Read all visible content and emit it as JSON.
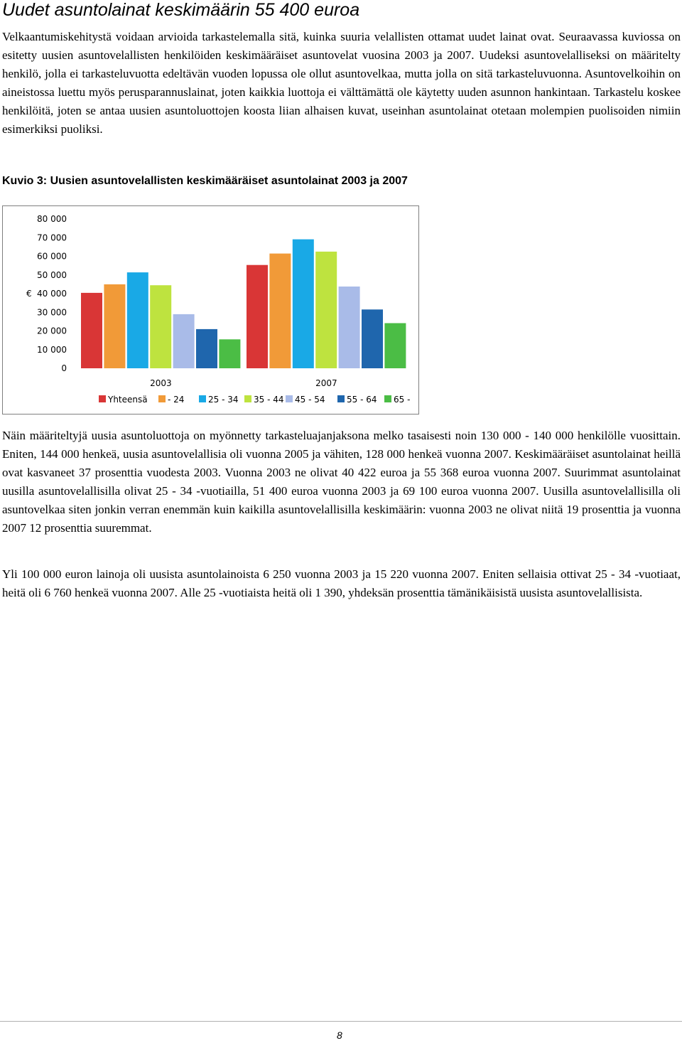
{
  "page": {
    "title": "Uudet asuntolainat keskimäärin 55 400 euroa",
    "paragraph_1": "Velkaantumiskehitystä voidaan arvioida tarkastelemalla sitä, kuinka suuria velallisten ottamat uudet lainat ovat. Seuraavassa kuviossa on esitetty uusien asuntovelallisten henkilöiden keskimääräiset asuntovelat vuosina 2003 ja 2007. Uudeksi asuntovelalliseksi on määritelty henkilö, jolla ei tarkasteluvuotta edeltävän vuoden lopussa ole ollut asuntovelkaa, mutta jolla on sitä tarkasteluvuonna. Asuntovelkoihin on aineistossa luettu myös perusparannuslainat, joten kaikkia luottoja ei välttämättä ole käytetty uuden asunnon hankintaan. Tarkastelu koskee henkilöitä, joten se antaa uusien asuntoluottojen koosta liian alhaisen kuvat, useinhan asuntolainat otetaan molempien puolisoiden nimiin esimerkiksi puoliksi.",
    "figure_title": "Kuvio 3: Uusien asuntovelallisten keskimääräiset asuntolainat 2003 ja 2007",
    "paragraph_2": "Näin määriteltyjä uusia asuntoluottoja on myönnetty tarkasteluajanjaksona melko tasaisesti noin 130 000 - 140 000 henkilölle vuosittain. Eniten, 144 000 henkeä, uusia asuntovelallisia oli vuonna 2005 ja vähiten, 128 000 henkeä vuonna 2007. Keskimääräiset asuntolainat heillä ovat kasvaneet 37 prosenttia vuodesta 2003. Vuonna 2003 ne olivat 40 422 euroa ja 55 368 euroa vuonna 2007. Suurimmat asuntolainat uusilla asuntovelallisilla olivat 25 - 34 -vuotiailla, 51 400 euroa vuonna 2003 ja 69 100 euroa vuonna 2007. Uusilla asuntovelallisilla oli asuntovelkaa siten jonkin verran enemmän kuin kaikilla asuntovelallisilla keskimäärin: vuonna 2003 ne olivat niitä 19 prosenttia ja vuonna 2007 12 prosenttia suuremmat.",
    "paragraph_3": "Yli 100 000 euron lainoja oli uusista asuntolainoista 6 250 vuonna 2003 ja 15 220 vuonna 2007. Eniten sellaisia ottivat 25 - 34 -vuotiaat, heitä oli 6 760 henkeä vuonna 2007. Alle 25 -vuotiaista heitä oli 1 390, yhdeksän prosenttia tämänikäisistä uusista asuntovelallisista.",
    "page_number": "8"
  },
  "chart_data": {
    "type": "bar",
    "categories": [
      "2003",
      "2007"
    ],
    "ylabel": "€",
    "ylim": [
      0,
      80000
    ],
    "yticks": [
      0,
      10000,
      20000,
      30000,
      40000,
      50000,
      60000,
      70000,
      80000
    ],
    "ytick_labels": [
      "0",
      "10 000",
      "20 000",
      "30 000",
      "40 000",
      "50 000",
      "60 000",
      "70 000",
      "80 000"
    ],
    "grid": false,
    "legend_position": "bottom",
    "series": [
      {
        "name": "Yhteensä",
        "color": "#d93636",
        "values": [
          40422,
          55368
        ]
      },
      {
        "name": "- 24",
        "color": "#f19a38",
        "values": [
          45000,
          61500
        ]
      },
      {
        "name": "25 - 34",
        "color": "#19a9e6",
        "values": [
          51400,
          69100
        ]
      },
      {
        "name": "35 - 44",
        "color": "#bee33f",
        "values": [
          44500,
          62500
        ]
      },
      {
        "name": "45 - 54",
        "color": "#a9bbe8",
        "values": [
          29000,
          43800
        ]
      },
      {
        "name": "55 - 64",
        "color": "#1f66ad",
        "values": [
          21000,
          31500
        ]
      },
      {
        "name": "65 -",
        "color": "#4bbd45",
        "values": [
          15500,
          24200
        ]
      }
    ]
  }
}
